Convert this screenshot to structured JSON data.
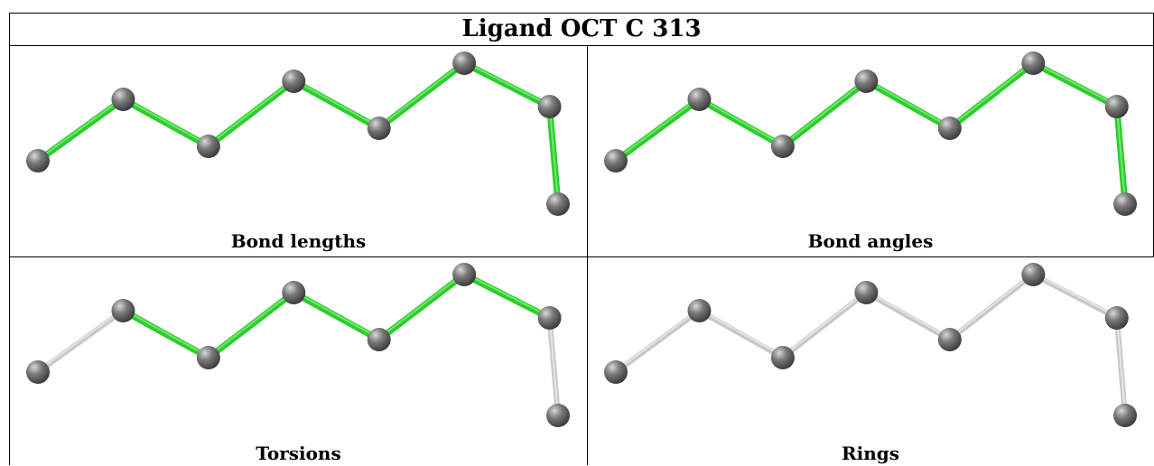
{
  "title": "Ligand OCT C 313",
  "colors": {
    "highlighted_bond": "#2ecc2e",
    "plain_bond": "#c8c8c8",
    "atom": "#7a7a7a",
    "border": "#000000"
  },
  "molecule": {
    "atoms": [
      {
        "id": "C1",
        "x": 0.0,
        "y": 4.0
      },
      {
        "id": "C2",
        "x": 1.0,
        "y": 2.3
      },
      {
        "id": "C3",
        "x": 2.0,
        "y": 3.6
      },
      {
        "id": "C4",
        "x": 3.0,
        "y": 1.8
      },
      {
        "id": "C5",
        "x": 4.0,
        "y": 3.1
      },
      {
        "id": "C6",
        "x": 5.0,
        "y": 1.3
      },
      {
        "id": "C7",
        "x": 6.0,
        "y": 2.5
      },
      {
        "id": "C8",
        "x": 6.1,
        "y": 5.2
      }
    ],
    "bonds": [
      [
        0,
        1
      ],
      [
        1,
        2
      ],
      [
        2,
        3
      ],
      [
        3,
        4
      ],
      [
        4,
        5
      ],
      [
        5,
        6
      ],
      [
        6,
        7
      ]
    ]
  },
  "panels": [
    {
      "caption": "Bond lengths",
      "highlight": [
        true,
        true,
        true,
        true,
        true,
        true,
        true
      ]
    },
    {
      "caption": "Bond angles",
      "highlight": [
        true,
        true,
        true,
        true,
        true,
        true,
        true
      ]
    },
    {
      "caption": "Torsions",
      "highlight": [
        false,
        true,
        true,
        true,
        true,
        true,
        false
      ]
    },
    {
      "caption": "Rings",
      "highlight": [
        false,
        false,
        false,
        false,
        false,
        false,
        false
      ]
    }
  ]
}
